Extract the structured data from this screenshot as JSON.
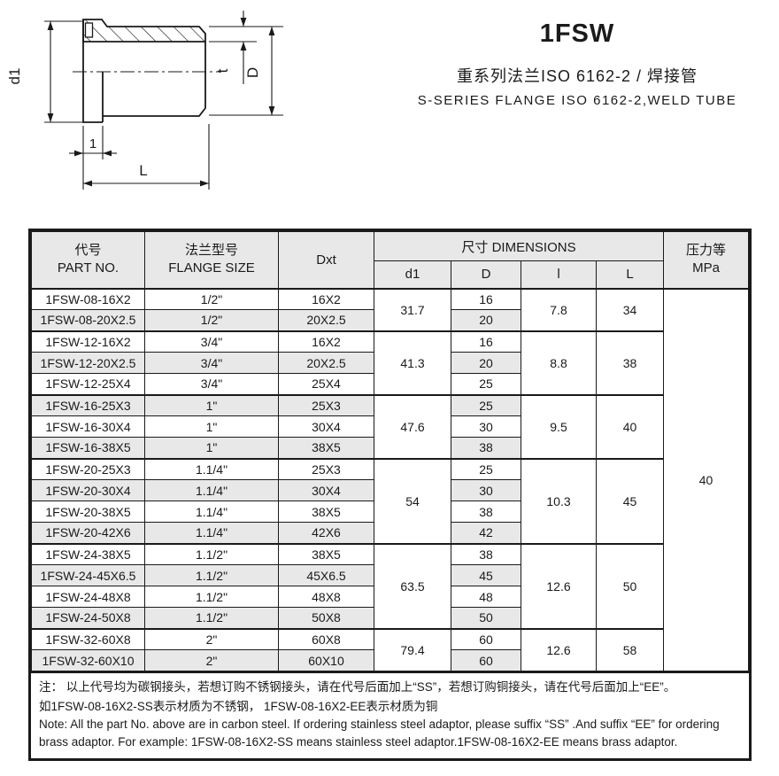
{
  "header": {
    "title": "1FSW",
    "subtitle_cn": "重系列法兰ISO 6162-2 / 焊接管",
    "subtitle_en": "S-SERIES FLANGE ISO 6162-2,WELD TUBE"
  },
  "drawing": {
    "labels": {
      "d1": "d1",
      "t": "t",
      "D": "D",
      "one": "1",
      "L": "L"
    }
  },
  "table": {
    "header": {
      "part_no_cn": "代号",
      "part_no_en": "PART NO.",
      "flange_size_cn": "法兰型号",
      "flange_size_en": "FLANGE SIZE",
      "dxt": "Dxt",
      "dimensions": "尺寸 DIMENSIONS",
      "sub": {
        "d1": "d1",
        "D": "D",
        "l": "l",
        "L": "L"
      },
      "pressure_cn": "压力等",
      "pressure_unit": "MPa"
    },
    "pressure_value": "40",
    "groups": [
      {
        "d1": "31.7",
        "l": "7.8",
        "L": "34",
        "rows": [
          {
            "part": "1FSW-08-16X2",
            "flange": "1/2\"",
            "dxt": "16X2",
            "D": "16",
            "shaded": false
          },
          {
            "part": "1FSW-08-20X2.5",
            "flange": "1/2\"",
            "dxt": "20X2.5",
            "D": "20",
            "shaded": true
          }
        ]
      },
      {
        "d1": "41.3",
        "l": "8.8",
        "L": "38",
        "rows": [
          {
            "part": "1FSW-12-16X2",
            "flange": "3/4\"",
            "dxt": "16X2",
            "D": "16",
            "shaded": false
          },
          {
            "part": "1FSW-12-20X2.5",
            "flange": "3/4\"",
            "dxt": "20X2.5",
            "D": "20",
            "shaded": true
          },
          {
            "part": "1FSW-12-25X4",
            "flange": "3/4\"",
            "dxt": "25X4",
            "D": "25",
            "shaded": false
          }
        ]
      },
      {
        "d1": "47.6",
        "l": "9.5",
        "L": "40",
        "rows": [
          {
            "part": "1FSW-16-25X3",
            "flange": "1\"",
            "dxt": "25X3",
            "D": "25",
            "shaded": true
          },
          {
            "part": "1FSW-16-30X4",
            "flange": "1\"",
            "dxt": "30X4",
            "D": "30",
            "shaded": false
          },
          {
            "part": "1FSW-16-38X5",
            "flange": "1\"",
            "dxt": "38X5",
            "D": "38",
            "shaded": true
          }
        ]
      },
      {
        "d1": "54",
        "l": "10.3",
        "L": "45",
        "rows": [
          {
            "part": "1FSW-20-25X3",
            "flange": "1.1/4\"",
            "dxt": "25X3",
            "D": "25",
            "shaded": false
          },
          {
            "part": "1FSW-20-30X4",
            "flange": "1.1/4\"",
            "dxt": "30X4",
            "D": "30",
            "shaded": true
          },
          {
            "part": "1FSW-20-38X5",
            "flange": "1.1/4\"",
            "dxt": "38X5",
            "D": "38",
            "shaded": false
          },
          {
            "part": "1FSW-20-42X6",
            "flange": "1.1/4\"",
            "dxt": "42X6",
            "D": "42",
            "shaded": true
          }
        ]
      },
      {
        "d1": "63.5",
        "l": "12.6",
        "L": "50",
        "rows": [
          {
            "part": "1FSW-24-38X5",
            "flange": "1.1/2\"",
            "dxt": "38X5",
            "D": "38",
            "shaded": false
          },
          {
            "part": "1FSW-24-45X6.5",
            "flange": "1.1/2\"",
            "dxt": "45X6.5",
            "D": "45",
            "shaded": true
          },
          {
            "part": "1FSW-24-48X8",
            "flange": "1.1/2\"",
            "dxt": "48X8",
            "D": "48",
            "shaded": false
          },
          {
            "part": "1FSW-24-50X8",
            "flange": "1.1/2\"",
            "dxt": "50X8",
            "D": "50",
            "shaded": true
          }
        ]
      },
      {
        "d1": "79.4",
        "l": "12.6",
        "L": "58",
        "rows": [
          {
            "part": "1FSW-32-60X8",
            "flange": "2\"",
            "dxt": "60X8",
            "D": "60",
            "shaded": false
          },
          {
            "part": "1FSW-32-60X10",
            "flange": "2\"",
            "dxt": "60X10",
            "D": "60",
            "shaded": true
          }
        ]
      }
    ]
  },
  "note": {
    "cn_line1": "注： 以上代号均为碳钢接头，若想订购不锈钢接头，请在代号后面加上“SS”，若想订购铜接头，请在代号后面加上“EE”。",
    "cn_line2": "如1FSW-08-16X2-SS表示材质为不锈钢， 1FSW-08-16X2-EE表示材质为铜",
    "en_line1": "Note:  All the part No. above are in carbon steel. If ordering stainless steel adaptor, please suffix “SS” .And suffix “EE” for ordering",
    "en_line2": "brass adaptor. For example: 1FSW-08-16X2-SS  means stainless steel adaptor.1FSW-08-16X2-EE means brass adaptor."
  },
  "colors": {
    "line": "#1a1a1a",
    "shade": "#e8e8e8"
  }
}
